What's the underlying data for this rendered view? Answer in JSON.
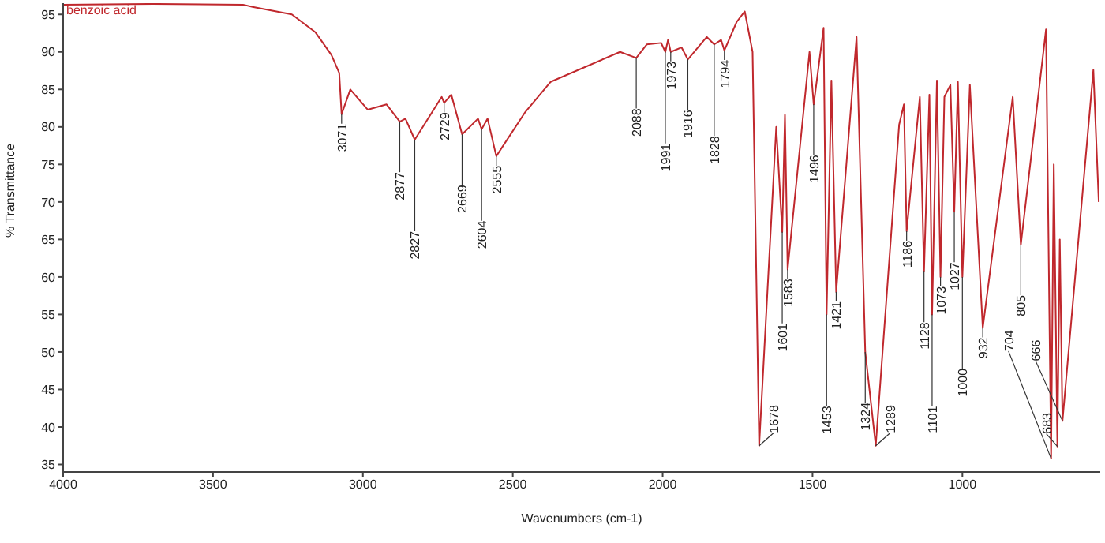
{
  "chart_data": {
    "type": "line",
    "xlabel": "Wavenumbers (cm-1)",
    "ylabel": "% Transmittance",
    "xlim": [
      4000,
      540
    ],
    "xticks": [
      4000,
      3500,
      3000,
      2500,
      2000,
      1500,
      1000
    ],
    "ylim": [
      34,
      96.5
    ],
    "yticks": [
      35,
      40,
      45,
      50,
      55,
      60,
      65,
      70,
      75,
      80,
      85,
      90,
      95
    ],
    "grid": false,
    "legend": "top left",
    "marker": "none",
    "line_style": "solid",
    "x": [
      4000,
      3700,
      3400,
      3368,
      3237,
      3158,
      3105,
      3079,
      3071,
      3042,
      2984,
      2921,
      2877,
      2858,
      2827,
      2737,
      2729,
      2705,
      2669,
      2616,
      2604,
      2584,
      2555,
      2458,
      2374,
      2142,
      2088,
      2053,
      2005,
      1991,
      1982,
      1973,
      1937,
      1916,
      1853,
      1828,
      1805,
      1794,
      1753,
      1726,
      1700,
      1678,
      1621,
      1601,
      1592,
      1583,
      1510,
      1496,
      1463,
      1453,
      1437,
      1421,
      1353,
      1324,
      1289,
      1211,
      1195,
      1186,
      1142,
      1128,
      1110,
      1101,
      1085,
      1073,
      1060,
      1040,
      1027,
      1015,
      1000,
      975,
      932,
      832,
      805,
      721,
      704,
      695,
      683,
      675,
      666,
      563,
      545
    ],
    "series": [
      {
        "name": "benzoic acid",
        "color": "#c0282d",
        "values": [
          96.3,
          96.4,
          96.3,
          96,
          95,
          92.6,
          89.6,
          87.2,
          81.7,
          85,
          82.3,
          83,
          80.7,
          81.1,
          78.3,
          84,
          83.2,
          84.3,
          79,
          81.1,
          79.7,
          81.1,
          76.1,
          82,
          86,
          90,
          89.2,
          91,
          91.2,
          90,
          91.6,
          90,
          90.6,
          89,
          92,
          91,
          91.6,
          90.2,
          94,
          95.4,
          90,
          37.5,
          80,
          66,
          81.6,
          61,
          90,
          83,
          93.2,
          55,
          86.2,
          58,
          92,
          50,
          37.5,
          80.3,
          83,
          66.1,
          84,
          60.7,
          84.3,
          55,
          86.2,
          60,
          84,
          85.6,
          68.7,
          86,
          60,
          85.6,
          53.2,
          84,
          64.3,
          93,
          35.8,
          75,
          37.4,
          65,
          40.8,
          87.6,
          70
        ]
      }
    ],
    "annotations": [
      {
        "text": "3071",
        "x": 3071,
        "y": 81.7
      },
      {
        "text": "2877",
        "x": 2877,
        "y": 80.7
      },
      {
        "text": "2827",
        "x": 2827,
        "y": 78.3
      },
      {
        "text": "2729",
        "x": 2729,
        "y": 83.2
      },
      {
        "text": "2669",
        "x": 2669,
        "y": 79
      },
      {
        "text": "2604",
        "x": 2604,
        "y": 79.7
      },
      {
        "text": "2555",
        "x": 2555,
        "y": 76.1
      },
      {
        "text": "2088",
        "x": 2088,
        "y": 89.2
      },
      {
        "text": "1991",
        "x": 1991,
        "y": 90
      },
      {
        "text": "1973",
        "x": 1973,
        "y": 90
      },
      {
        "text": "1916",
        "x": 1916,
        "y": 89
      },
      {
        "text": "1828",
        "x": 1828,
        "y": 91
      },
      {
        "text": "1794",
        "x": 1794,
        "y": 90.2
      },
      {
        "text": "1678",
        "x": 1678,
        "y": 37.5
      },
      {
        "text": "1601",
        "x": 1601,
        "y": 66
      },
      {
        "text": "1583",
        "x": 1583,
        "y": 61
      },
      {
        "text": "1496",
        "x": 1496,
        "y": 83
      },
      {
        "text": "1453",
        "x": 1453,
        "y": 55
      },
      {
        "text": "1421",
        "x": 1421,
        "y": 58
      },
      {
        "text": "1324",
        "x": 1324,
        "y": 50
      },
      {
        "text": "1289",
        "x": 1289,
        "y": 37.5
      },
      {
        "text": "1186",
        "x": 1186,
        "y": 66.1
      },
      {
        "text": "1128",
        "x": 1128,
        "y": 60.7
      },
      {
        "text": "1101",
        "x": 1101,
        "y": 55
      },
      {
        "text": "1073",
        "x": 1073,
        "y": 60
      },
      {
        "text": "1027",
        "x": 1027,
        "y": 68.7
      },
      {
        "text": "1000",
        "x": 1000,
        "y": 60
      },
      {
        "text": "932",
        "x": 932,
        "y": 53.2
      },
      {
        "text": "805",
        "x": 805,
        "y": 64.3
      },
      {
        "text": "704",
        "x": 704,
        "y": 35.8
      },
      {
        "text": "683",
        "x": 683,
        "y": 37.4
      },
      {
        "text": "666",
        "x": 666,
        "y": 40.8
      }
    ]
  }
}
